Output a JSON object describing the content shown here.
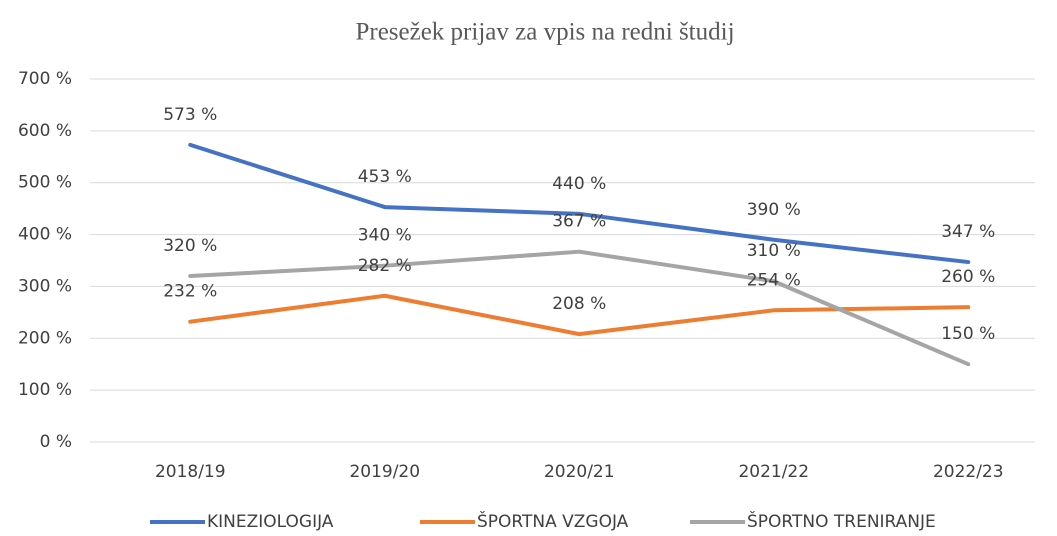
{
  "chart_data": {
    "type": "line",
    "title": "Presežek prijav za vpis na redni študij",
    "categories": [
      "2018/19",
      "2019/20",
      "2020/21",
      "2021/22",
      "2022/23"
    ],
    "series": [
      {
        "name": "KINEZIOLOGIJA",
        "color": "#4472c4",
        "values": [
          573,
          453,
          440,
          390,
          347
        ],
        "value_labels": [
          "573 %",
          "453 %",
          "440 %",
          "390 %",
          "347 %"
        ]
      },
      {
        "name": "ŠPORTNA VZGOJA",
        "color": "#ed7d31",
        "values": [
          232,
          282,
          208,
          254,
          260
        ],
        "value_labels": [
          "232 %",
          "282 %",
          "208 %",
          "254 %",
          "260 %"
        ]
      },
      {
        "name": "ŠPORTNO TRENIRANJE",
        "color": "#a5a5a5",
        "values": [
          320,
          340,
          367,
          310,
          150
        ],
        "value_labels": [
          "320 %",
          "340 %",
          "367 %",
          "310 %",
          "150 %"
        ]
      }
    ],
    "ylim": [
      0,
      700
    ],
    "yticks": [
      {
        "value": 0,
        "label": "0 %"
      },
      {
        "value": 100,
        "label": "100 %"
      },
      {
        "value": 200,
        "label": "200 %"
      },
      {
        "value": 300,
        "label": "300 %"
      },
      {
        "value": 400,
        "label": "400 %"
      },
      {
        "value": 500,
        "label": "500 %"
      },
      {
        "value": 600,
        "label": "600 %"
      },
      {
        "value": 700,
        "label": "700 %"
      }
    ],
    "grid": true,
    "legend": "bottom"
  }
}
